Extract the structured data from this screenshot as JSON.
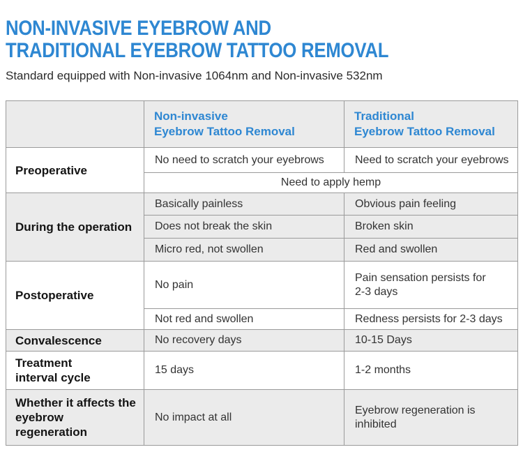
{
  "colors": {
    "accent_blue": "#2e87d2",
    "cell_gray": "#ebebeb",
    "border_gray": "#9a9a9a"
  },
  "header": {
    "title_line1": "NON-INVASIVE EYEBROW AND",
    "title_line2": "TRADITIONAL EYEBROW TATTOO REMOVAL",
    "subtitle": "Standard equipped with Non-invasive 1064nm and Non-invasive 532nm"
  },
  "table": {
    "column_headers": {
      "noninvasive": "Non-invasive\nEyebrow Tattoo Removal",
      "traditional": "Traditional\nEyebrow Tattoo Removal"
    },
    "sections": [
      {
        "label": "Preoperative",
        "rows": [
          {
            "cols": [
              "No need to scratch your eyebrows",
              "Need to scratch your eyebrows"
            ]
          },
          {
            "merged": "Need to apply hemp"
          }
        ]
      },
      {
        "label": "During the operation",
        "rows": [
          {
            "cols": [
              "Basically painless",
              "Obvious pain feeling"
            ]
          },
          {
            "cols": [
              "Does not break the skin",
              "Broken skin"
            ]
          },
          {
            "cols": [
              "Micro red, not swollen",
              "Red and swollen"
            ]
          }
        ]
      },
      {
        "label": "Postoperative",
        "rows": [
          {
            "cols": [
              "No pain",
              "Pain sensation persists for\n2-3 days"
            ]
          },
          {
            "cols": [
              "Not red and swollen",
              "Redness persists for 2-3 days"
            ]
          }
        ]
      },
      {
        "label": "Convalescence",
        "rows": [
          {
            "cols": [
              "No recovery days",
              "10-15 Days"
            ]
          }
        ]
      },
      {
        "label": "Treatment\ninterval cycle",
        "rows": [
          {
            "cols": [
              "15 days",
              "1-2 months"
            ]
          }
        ]
      },
      {
        "label": "Whether it affects the\neyebrow regeneration",
        "rows": [
          {
            "cols": [
              "No impact at all",
              "Eyebrow regeneration is\ninhibited"
            ]
          }
        ]
      }
    ]
  }
}
